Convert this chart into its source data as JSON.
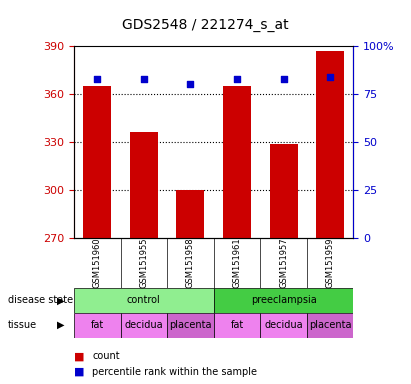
{
  "title": "GDS2548 / 221274_s_at",
  "samples": [
    "GSM151960",
    "GSM151955",
    "GSM151958",
    "GSM151961",
    "GSM151957",
    "GSM151959"
  ],
  "counts": [
    365,
    336,
    300,
    365,
    329,
    387
  ],
  "percentiles": [
    83,
    83,
    80,
    83,
    83,
    84
  ],
  "ymin": 270,
  "ymax": 390,
  "yticks": [
    270,
    300,
    330,
    360,
    390
  ],
  "y2min": 0,
  "y2max": 100,
  "y2ticks": [
    0,
    25,
    50,
    75,
    100
  ],
  "bar_color": "#cc0000",
  "dot_color": "#0000cc",
  "disease_state": [
    {
      "label": "control",
      "span": [
        0,
        3
      ],
      "color": "#90ee90"
    },
    {
      "label": "preeclampsia",
      "span": [
        3,
        6
      ],
      "color": "#44cc44"
    }
  ],
  "tissue": [
    {
      "label": "fat",
      "span": [
        0,
        1
      ],
      "color": "#ee82ee"
    },
    {
      "label": "decidua",
      "span": [
        1,
        2
      ],
      "color": "#ee82ee"
    },
    {
      "label": "placenta",
      "span": [
        2,
        3
      ],
      "color": "#cc66cc"
    },
    {
      "label": "fat",
      "span": [
        3,
        4
      ],
      "color": "#ee82ee"
    },
    {
      "label": "decidua",
      "span": [
        4,
        5
      ],
      "color": "#ee82ee"
    },
    {
      "label": "placenta",
      "span": [
        5,
        6
      ],
      "color": "#cc66cc"
    }
  ],
  "legend_count_label": "count",
  "legend_pct_label": "percentile rank within the sample",
  "disease_state_label": "disease state",
  "tissue_label": "tissue",
  "plot_bg_color": "#e0e0e0",
  "ax_left_color": "#cc0000",
  "ax_right_color": "#0000cc"
}
